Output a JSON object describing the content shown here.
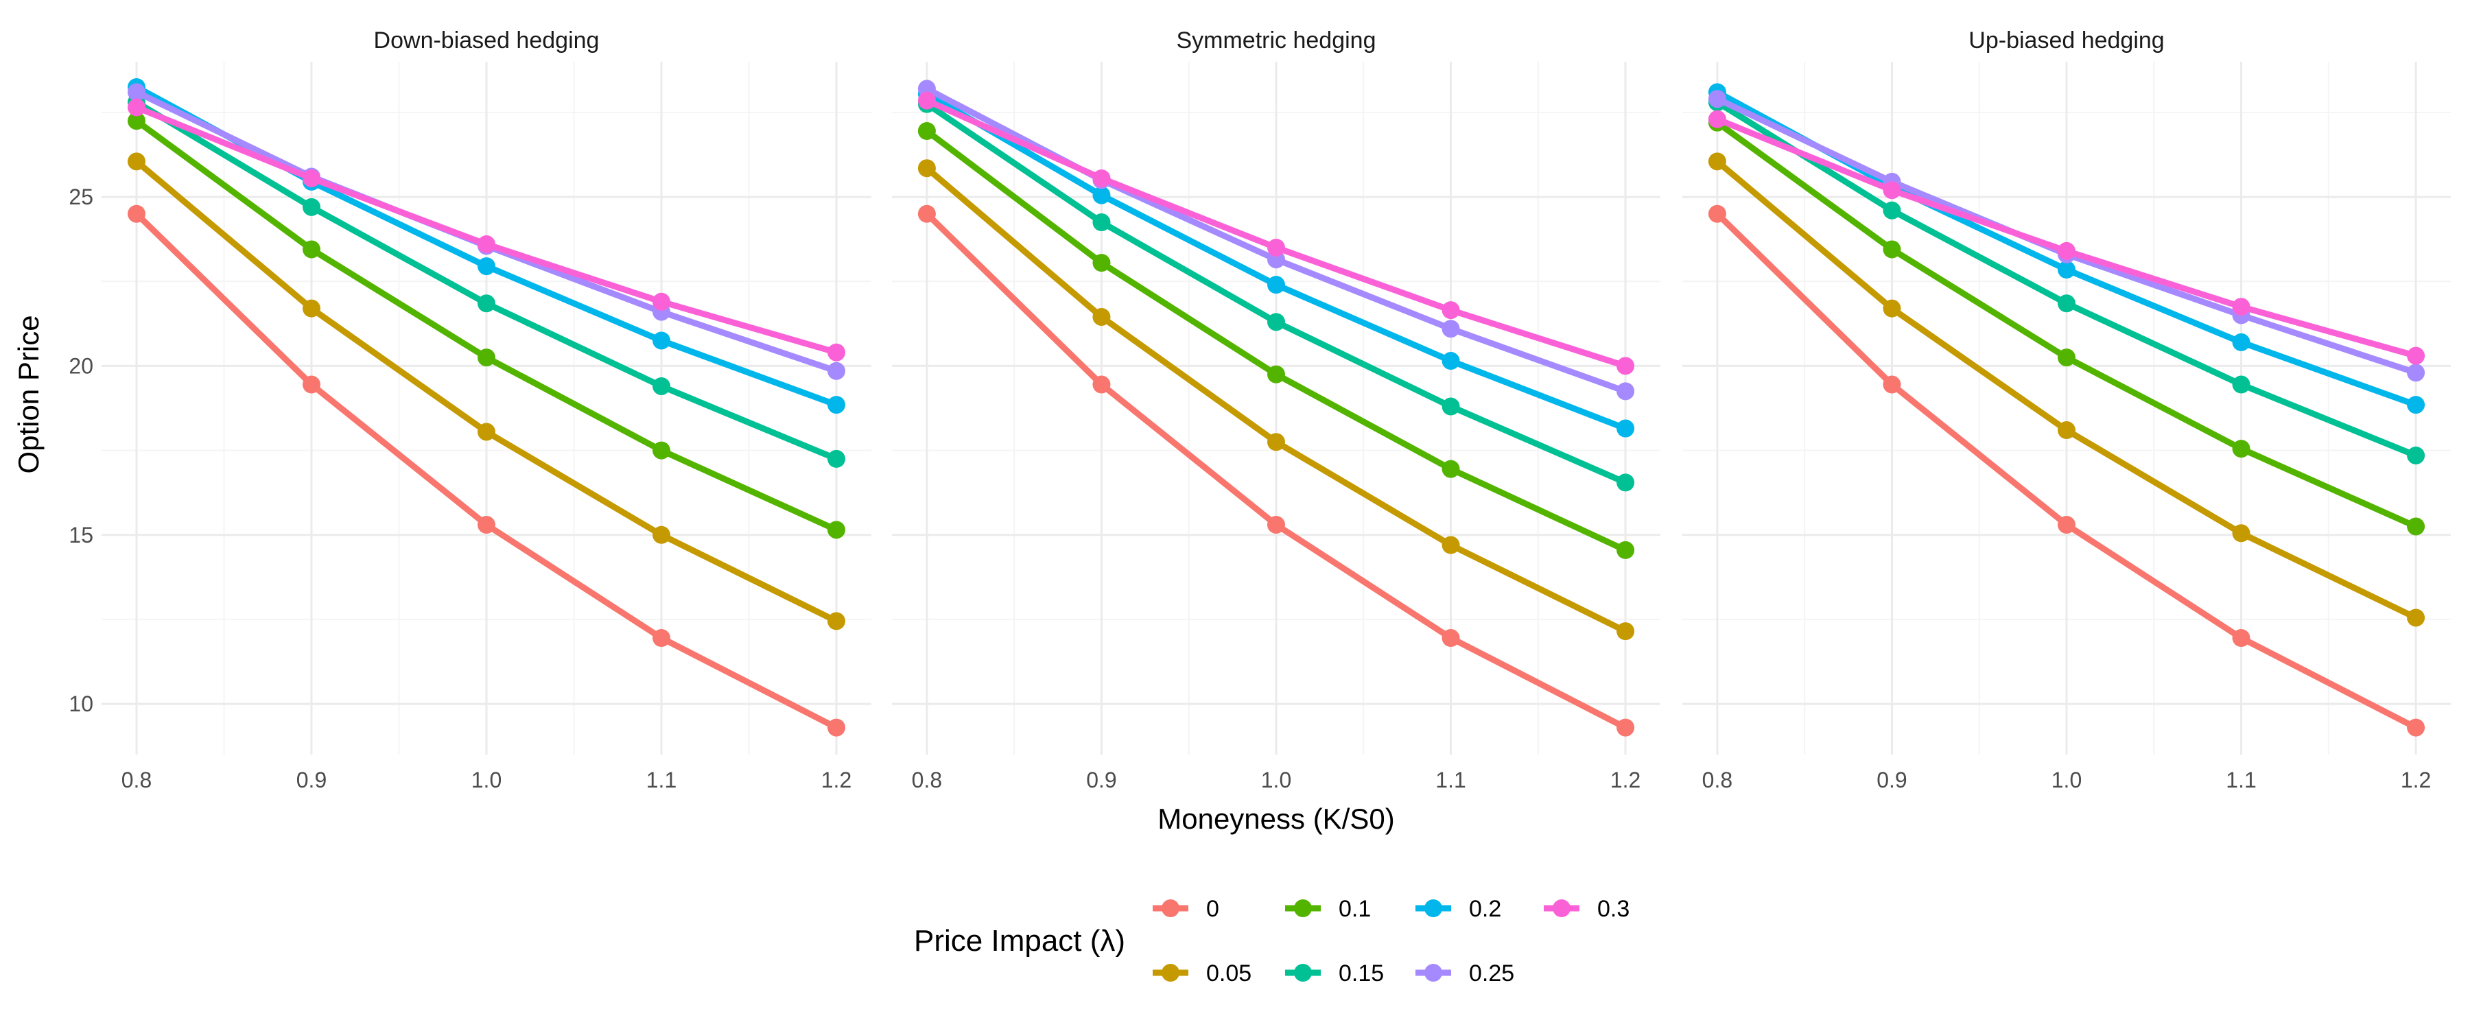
{
  "chart_data": {
    "type": "line",
    "ylabel": "Option Price",
    "xlabel": "Moneyness (K/S0)",
    "x": [
      0.8,
      0.9,
      1.0,
      1.1,
      1.2
    ],
    "x_tick_labels": [
      "0.8",
      "0.9",
      "1.0",
      "1.1",
      "1.2"
    ],
    "xlim": [
      0.78,
      1.22
    ],
    "ylim": [
      8.5,
      29.0
    ],
    "y_ticks": [
      10,
      15,
      20,
      25
    ],
    "grid": true,
    "legend": {
      "title": "Price Impact (λ)",
      "position": "bottom",
      "columns": 4,
      "entries": [
        "0",
        "0.05",
        "0.1",
        "0.15",
        "0.2",
        "0.25",
        "0.3"
      ]
    },
    "series_colors": {
      "0": "#F8766D",
      "0.05": "#C49A00",
      "0.1": "#53B400",
      "0.15": "#00C094",
      "0.2": "#00B6EB",
      "0.25": "#A58AFF",
      "0.3": "#FB61D7"
    },
    "panels": [
      {
        "title": "Down-biased hedging",
        "series": [
          {
            "name": "0",
            "values": [
              24.5,
              19.45,
              15.3,
              11.95,
              9.3
            ]
          },
          {
            "name": "0.05",
            "values": [
              26.05,
              21.7,
              18.05,
              15.0,
              12.45
            ]
          },
          {
            "name": "0.1",
            "values": [
              27.25,
              23.45,
              20.25,
              17.5,
              15.15
            ]
          },
          {
            "name": "0.15",
            "values": [
              27.8,
              24.7,
              21.85,
              19.4,
              17.25
            ]
          },
          {
            "name": "0.2",
            "values": [
              28.25,
              25.45,
              22.95,
              20.75,
              18.85
            ]
          },
          {
            "name": "0.25",
            "values": [
              28.1,
              25.6,
              23.55,
              21.6,
              19.85
            ]
          },
          {
            "name": "0.3",
            "values": [
              27.65,
              25.55,
              23.6,
              21.9,
              20.4
            ]
          }
        ]
      },
      {
        "title": "Symmetric hedging",
        "series": [
          {
            "name": "0",
            "values": [
              24.5,
              19.45,
              15.3,
              11.95,
              9.3
            ]
          },
          {
            "name": "0.05",
            "values": [
              25.85,
              21.45,
              17.75,
              14.7,
              12.15
            ]
          },
          {
            "name": "0.1",
            "values": [
              26.95,
              23.05,
              19.75,
              16.95,
              14.55
            ]
          },
          {
            "name": "0.15",
            "values": [
              27.75,
              24.25,
              21.3,
              18.8,
              16.55
            ]
          },
          {
            "name": "0.2",
            "values": [
              28.05,
              25.05,
              22.4,
              20.15,
              18.15
            ]
          },
          {
            "name": "0.25",
            "values": [
              28.2,
              25.5,
              23.15,
              21.1,
              19.25
            ]
          },
          {
            "name": "0.3",
            "values": [
              27.85,
              25.55,
              23.5,
              21.65,
              20.0
            ]
          }
        ]
      },
      {
        "title": "Up-biased hedging",
        "series": [
          {
            "name": "0",
            "values": [
              24.5,
              19.45,
              15.3,
              11.95,
              9.3
            ]
          },
          {
            "name": "0.05",
            "values": [
              26.05,
              21.7,
              18.1,
              15.05,
              12.55
            ]
          },
          {
            "name": "0.1",
            "values": [
              27.2,
              23.45,
              20.25,
              17.55,
              15.25
            ]
          },
          {
            "name": "0.15",
            "values": [
              27.8,
              24.6,
              21.85,
              19.45,
              17.35
            ]
          },
          {
            "name": "0.2",
            "values": [
              28.1,
              25.3,
              22.85,
              20.7,
              18.85
            ]
          },
          {
            "name": "0.25",
            "values": [
              27.9,
              25.45,
              23.3,
              21.5,
              19.8
            ]
          },
          {
            "name": "0.3",
            "values": [
              27.3,
              25.2,
              23.4,
              21.75,
              20.3
            ]
          }
        ]
      }
    ]
  }
}
